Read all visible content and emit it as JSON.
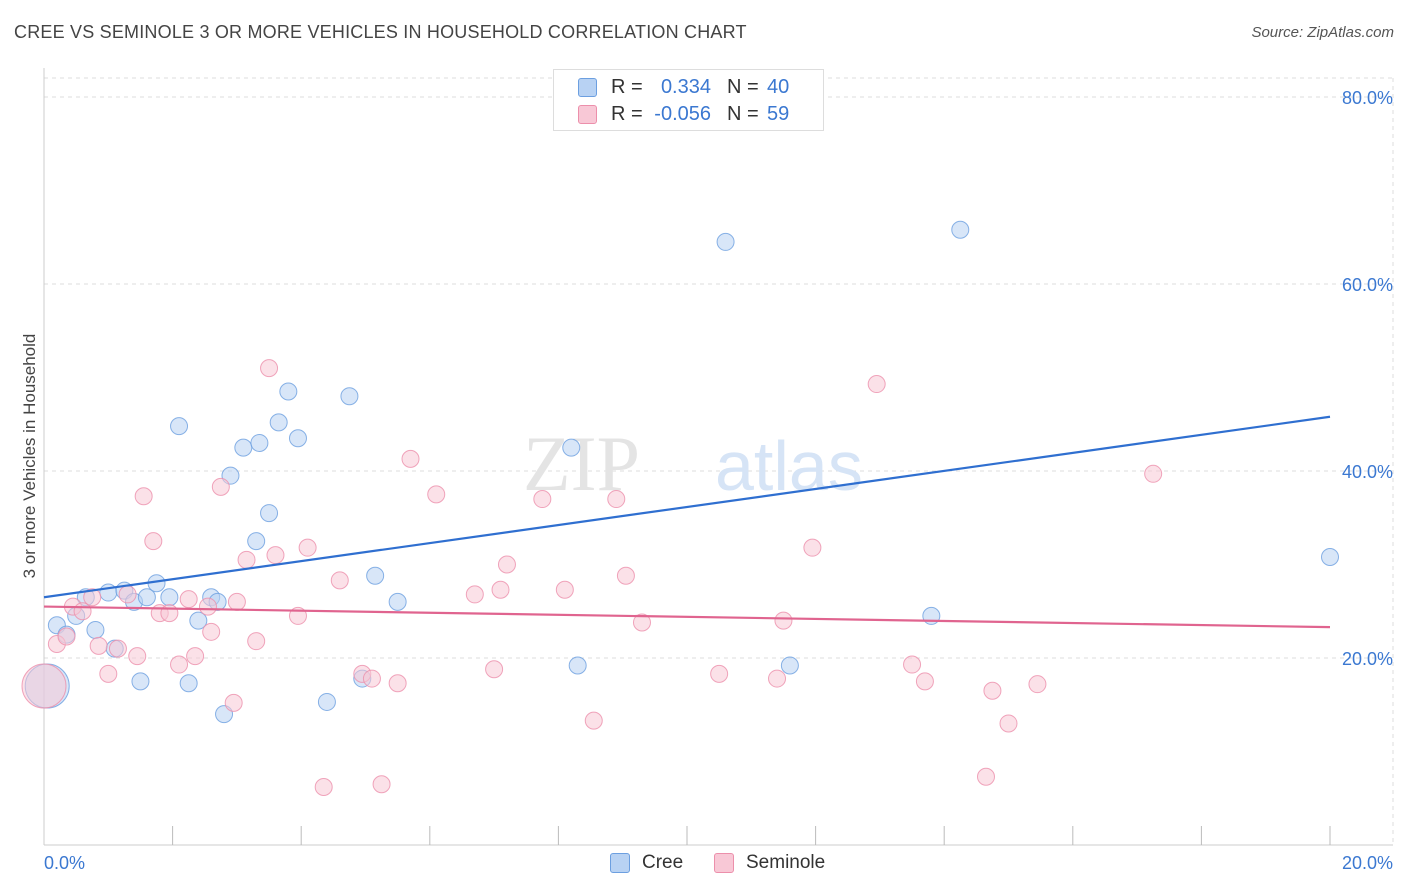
{
  "title": "CREE VS SEMINOLE 3 OR MORE VEHICLES IN HOUSEHOLD CORRELATION CHART",
  "source": "Source: ZipAtlas.com",
  "watermark": {
    "zip": "ZIP",
    "atlas": "atlas"
  },
  "stats": [
    {
      "swatch_color": "#b8d2f3",
      "swatch_border": "#6c9fe0",
      "r_label": "R =",
      "r_value": "0.334",
      "n_label": "N =",
      "n_value": "40"
    },
    {
      "swatch_color": "#f8c8d6",
      "swatch_border": "#ec8fab",
      "r_label": "R =",
      "r_value": "-0.056",
      "n_label": "N =",
      "n_value": "59"
    }
  ],
  "legend": [
    {
      "label": "Cree",
      "swatch_color": "#b8d2f3",
      "swatch_border": "#6c9fe0"
    },
    {
      "label": "Seminole",
      "swatch_color": "#f8c8d6",
      "swatch_border": "#ec8fab"
    }
  ],
  "chart_data": {
    "type": "scatter",
    "title": "CREE VS SEMINOLE 3 OR MORE VEHICLES IN HOUSEHOLD CORRELATION CHART",
    "xlabel": "",
    "ylabel": "3 or more Vehicles in Household",
    "xlim": [
      0,
      20
    ],
    "ylim": [
      0,
      82
    ],
    "x_tick_labels": [
      {
        "value": 0,
        "label": "0.0%"
      },
      {
        "value": 20,
        "label": "20.0%"
      }
    ],
    "x_minor_ticks": [
      2,
      4,
      6,
      8,
      10,
      12,
      14,
      16,
      18,
      20
    ],
    "y_tick_labels": [
      {
        "value": 20,
        "label": "20.0%"
      },
      {
        "value": 40,
        "label": "40.0%"
      },
      {
        "value": 60,
        "label": "60.0%"
      },
      {
        "value": 80,
        "label": "80.0%"
      }
    ],
    "grid": true,
    "legend_position": "bottom-center",
    "series": [
      {
        "name": "Cree",
        "color": "#6c9fe0",
        "fill": "#b8d2f3",
        "trend": {
          "x": [
            0,
            20
          ],
          "y": [
            26.5,
            45.8
          ],
          "color": "#2f6fd0"
        },
        "points": [
          [
            0.05,
            17.0
          ],
          [
            0.2,
            23.5
          ],
          [
            0.35,
            22.5
          ],
          [
            0.5,
            24.5
          ],
          [
            0.65,
            26.5
          ],
          [
            0.8,
            23.0
          ],
          [
            1.0,
            27.0
          ],
          [
            1.1,
            21.0
          ],
          [
            1.25,
            27.2
          ],
          [
            1.4,
            26.0
          ],
          [
            1.5,
            17.5
          ],
          [
            1.6,
            26.5
          ],
          [
            1.75,
            28.0
          ],
          [
            1.95,
            26.5
          ],
          [
            2.1,
            44.8
          ],
          [
            2.25,
            17.3
          ],
          [
            2.4,
            24.0
          ],
          [
            2.6,
            26.5
          ],
          [
            2.7,
            26.0
          ],
          [
            2.8,
            14.0
          ],
          [
            2.9,
            39.5
          ],
          [
            3.1,
            42.5
          ],
          [
            3.3,
            32.5
          ],
          [
            3.35,
            43.0
          ],
          [
            3.5,
            35.5
          ],
          [
            3.65,
            45.2
          ],
          [
            3.8,
            48.5
          ],
          [
            3.95,
            43.5
          ],
          [
            4.4,
            15.3
          ],
          [
            4.75,
            48.0
          ],
          [
            4.95,
            17.8
          ],
          [
            5.15,
            28.8
          ],
          [
            5.5,
            26.0
          ],
          [
            8.2,
            42.5
          ],
          [
            8.3,
            19.2
          ],
          [
            10.6,
            64.5
          ],
          [
            11.6,
            19.2
          ],
          [
            13.8,
            24.5
          ],
          [
            14.25,
            65.8
          ],
          [
            20.0,
            30.8
          ]
        ]
      },
      {
        "name": "Seminole",
        "color": "#ec8fab",
        "fill": "#f8c8d6",
        "trend": {
          "x": [
            0,
            20
          ],
          "y": [
            25.5,
            23.3
          ],
          "color": "#e0648f"
        },
        "points": [
          [
            0.0,
            17.0
          ],
          [
            0.2,
            21.5
          ],
          [
            0.35,
            22.3
          ],
          [
            0.45,
            25.5
          ],
          [
            0.6,
            25.0
          ],
          [
            0.75,
            26.5
          ],
          [
            0.85,
            21.3
          ],
          [
            1.0,
            18.3
          ],
          [
            1.15,
            21.0
          ],
          [
            1.3,
            26.8
          ],
          [
            1.45,
            20.2
          ],
          [
            1.55,
            37.3
          ],
          [
            1.7,
            32.5
          ],
          [
            1.8,
            24.8
          ],
          [
            1.95,
            24.8
          ],
          [
            2.1,
            19.3
          ],
          [
            2.25,
            26.3
          ],
          [
            2.35,
            20.2
          ],
          [
            2.55,
            25.5
          ],
          [
            2.6,
            22.8
          ],
          [
            2.75,
            38.3
          ],
          [
            2.95,
            15.2
          ],
          [
            3.0,
            26.0
          ],
          [
            3.15,
            30.5
          ],
          [
            3.3,
            21.8
          ],
          [
            3.5,
            51.0
          ],
          [
            3.6,
            31.0
          ],
          [
            3.95,
            24.5
          ],
          [
            4.1,
            31.8
          ],
          [
            4.35,
            6.2
          ],
          [
            4.6,
            28.3
          ],
          [
            4.95,
            18.3
          ],
          [
            5.1,
            17.8
          ],
          [
            5.25,
            6.5
          ],
          [
            5.5,
            17.3
          ],
          [
            5.7,
            41.3
          ],
          [
            6.1,
            37.5
          ],
          [
            6.7,
            26.8
          ],
          [
            7.0,
            18.8
          ],
          [
            7.1,
            27.3
          ],
          [
            7.2,
            30.0
          ],
          [
            7.75,
            37.0
          ],
          [
            8.1,
            27.3
          ],
          [
            8.55,
            13.3
          ],
          [
            8.9,
            37.0
          ],
          [
            9.05,
            28.8
          ],
          [
            9.3,
            23.8
          ],
          [
            10.5,
            18.3
          ],
          [
            11.4,
            17.8
          ],
          [
            11.5,
            24.0
          ],
          [
            11.95,
            31.8
          ],
          [
            12.95,
            49.3
          ],
          [
            13.5,
            19.3
          ],
          [
            13.7,
            17.5
          ],
          [
            14.65,
            7.3
          ],
          [
            14.75,
            16.5
          ],
          [
            15.0,
            13.0
          ],
          [
            15.45,
            17.2
          ],
          [
            17.25,
            39.7
          ]
        ]
      }
    ]
  }
}
